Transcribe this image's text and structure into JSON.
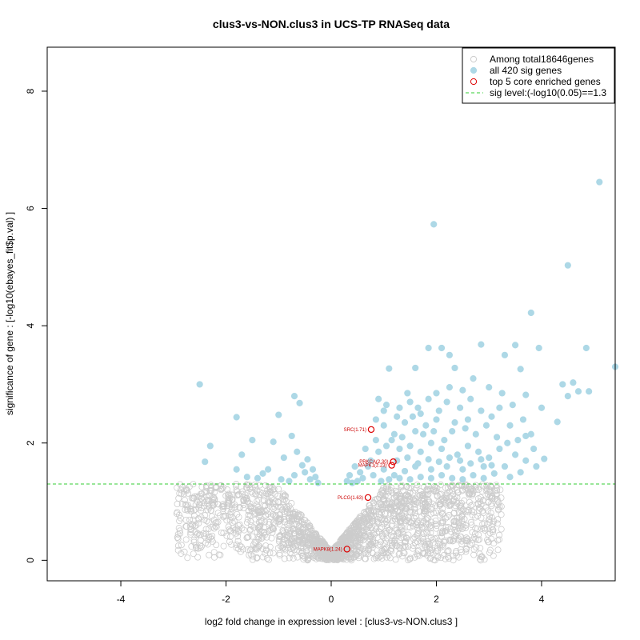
{
  "chart_data": {
    "type": "scatter",
    "title": "clus3-vs-NON.clus3 in UCS-TP RNASeq data",
    "xlabel": "log2 fold change in expression level : [clus3-vs-NON.clus3 ]",
    "ylabel": "significance of gene : [-log10(ebayes_fit$p.val) ]",
    "xlim": [
      -5.4,
      5.4
    ],
    "ylim": [
      -0.35,
      8.75
    ],
    "xticks": [
      -4,
      -2,
      0,
      2,
      4
    ],
    "yticks": [
      0,
      2,
      4,
      6,
      8
    ],
    "sig_level": 1.3,
    "colors": {
      "background_points": "#cccccc",
      "sig_points": "#add8e6",
      "top_points": "#dd0000",
      "sig_line": "#33cc33"
    },
    "legend": {
      "position": "top-right",
      "entries": [
        {
          "label": "Among total18646genes",
          "kind": "hollow-grey"
        },
        {
          "label": "all 420 sig genes",
          "kind": "filled-blue"
        },
        {
          "label": "top 5 core enriched genes",
          "kind": "hollow-red"
        },
        {
          "label": "sig level:(-log10(0.05)==1.3",
          "kind": "dashed-green"
        }
      ]
    },
    "top_genes": [
      {
        "label": "SRC(1.71)",
        "x": 0.76,
        "y": 2.23
      },
      {
        "label": "PRKCA(2.30)",
        "x": 1.18,
        "y": 1.68
      },
      {
        "label": "MAPK1(2.23)",
        "x": 1.15,
        "y": 1.62
      },
      {
        "label": "PLCG(1.63)",
        "x": 0.7,
        "y": 1.07
      },
      {
        "label": "MAPK8(1.24)",
        "x": 0.3,
        "y": 0.19
      }
    ],
    "sig_points": [
      [
        5.1,
        6.45
      ],
      [
        1.95,
        5.73
      ],
      [
        4.5,
        5.03
      ],
      [
        3.8,
        4.22
      ],
      [
        3.5,
        3.67
      ],
      [
        3.95,
        3.62
      ],
      [
        2.85,
        3.68
      ],
      [
        4.85,
        3.62
      ],
      [
        1.85,
        3.62
      ],
      [
        2.1,
        3.62
      ],
      [
        2.25,
        3.5
      ],
      [
        5.4,
        3.3
      ],
      [
        3.3,
        3.5
      ],
      [
        1.1,
        3.27
      ],
      [
        1.6,
        3.28
      ],
      [
        2.35,
        3.28
      ],
      [
        3.6,
        3.26
      ],
      [
        -2.5,
        3.0
      ],
      [
        4.6,
        3.03
      ],
      [
        4.4,
        3.0
      ],
      [
        4.7,
        2.88
      ],
      [
        4.9,
        2.88
      ],
      [
        4.5,
        2.8
      ],
      [
        3.7,
        2.82
      ],
      [
        -0.7,
        2.8
      ],
      [
        -0.6,
        2.68
      ],
      [
        -1.0,
        2.48
      ],
      [
        -1.8,
        2.44
      ],
      [
        4.3,
        2.36
      ],
      [
        3.8,
        2.15
      ],
      [
        3.7,
        2.12
      ],
      [
        -0.75,
        2.12
      ],
      [
        -1.5,
        2.05
      ],
      [
        -2.3,
        1.95
      ],
      [
        -1.1,
        2.02
      ],
      [
        -1.7,
        1.8
      ],
      [
        -0.9,
        1.75
      ],
      [
        -2.4,
        1.68
      ],
      [
        4.05,
        1.73
      ],
      [
        -1.8,
        1.55
      ],
      [
        -1.2,
        1.55
      ],
      [
        -0.5,
        1.5
      ],
      [
        -0.3,
        1.42
      ],
      [
        -1.4,
        1.4
      ],
      [
        -0.8,
        1.35
      ],
      [
        -0.55,
        1.62
      ],
      [
        -0.65,
        1.85
      ],
      [
        -0.45,
        1.72
      ],
      [
        -0.35,
        1.55
      ],
      [
        -1.6,
        1.42
      ],
      [
        -1.3,
        1.48
      ],
      [
        -0.95,
        1.38
      ],
      [
        -0.7,
        1.45
      ],
      [
        -0.4,
        1.38
      ],
      [
        -0.25,
        1.32
      ],
      [
        0.9,
        2.75
      ],
      [
        1.0,
        2.55
      ],
      [
        1.3,
        2.6
      ],
      [
        1.5,
        2.7
      ],
      [
        1.7,
        2.5
      ],
      [
        2.0,
        2.85
      ],
      [
        2.2,
        2.7
      ],
      [
        2.5,
        2.9
      ],
      [
        2.7,
        3.1
      ],
      [
        3.0,
        2.95
      ],
      [
        3.2,
        2.6
      ],
      [
        3.4,
        2.3
      ],
      [
        2.6,
        2.4
      ],
      [
        2.3,
        2.2
      ],
      [
        2.0,
        2.4
      ],
      [
        1.8,
        2.3
      ],
      [
        1.6,
        2.2
      ],
      [
        1.4,
        2.35
      ],
      [
        1.2,
        2.15
      ],
      [
        1.0,
        2.3
      ],
      [
        0.85,
        2.05
      ],
      [
        0.9,
        1.85
      ],
      [
        1.05,
        1.95
      ],
      [
        1.3,
        1.9
      ],
      [
        1.5,
        1.95
      ],
      [
        1.7,
        1.85
      ],
      [
        1.9,
        2.0
      ],
      [
        2.1,
        1.9
      ],
      [
        2.4,
        1.8
      ],
      [
        2.6,
        1.95
      ],
      [
        2.8,
        1.85
      ],
      [
        3.0,
        1.75
      ],
      [
        3.2,
        1.9
      ],
      [
        3.5,
        1.8
      ],
      [
        3.7,
        1.7
      ],
      [
        3.9,
        1.6
      ],
      [
        3.3,
        1.6
      ],
      [
        2.9,
        1.6
      ],
      [
        2.5,
        1.55
      ],
      [
        2.2,
        1.6
      ],
      [
        1.9,
        1.55
      ],
      [
        1.6,
        1.6
      ],
      [
        1.4,
        1.52
      ],
      [
        1.2,
        1.45
      ],
      [
        1.0,
        1.55
      ],
      [
        0.8,
        1.45
      ],
      [
        0.7,
        1.6
      ],
      [
        0.6,
        1.4
      ],
      [
        0.5,
        1.35
      ],
      [
        0.4,
        1.32
      ],
      [
        0.55,
        1.5
      ],
      [
        0.75,
        1.7
      ],
      [
        0.95,
        1.35
      ],
      [
        1.1,
        1.38
      ],
      [
        1.3,
        1.4
      ],
      [
        1.5,
        1.38
      ],
      [
        1.7,
        1.42
      ],
      [
        1.9,
        1.4
      ],
      [
        2.1,
        1.45
      ],
      [
        2.3,
        1.4
      ],
      [
        2.5,
        1.38
      ],
      [
        2.7,
        1.45
      ],
      [
        2.9,
        1.4
      ],
      [
        3.1,
        1.48
      ],
      [
        3.4,
        1.42
      ],
      [
        3.6,
        1.5
      ],
      [
        1.25,
        1.7
      ],
      [
        1.45,
        1.75
      ],
      [
        1.65,
        1.65
      ],
      [
        1.85,
        1.72
      ],
      [
        2.05,
        1.68
      ],
      [
        2.25,
        1.75
      ],
      [
        2.45,
        1.7
      ],
      [
        2.65,
        1.65
      ],
      [
        2.85,
        1.72
      ],
      [
        3.05,
        1.62
      ],
      [
        1.15,
        2.05
      ],
      [
        1.35,
        2.1
      ],
      [
        1.55,
        2.45
      ],
      [
        1.75,
        2.15
      ],
      [
        1.95,
        2.2
      ],
      [
        2.15,
        2.05
      ],
      [
        2.35,
        2.35
      ],
      [
        2.55,
        2.25
      ],
      [
        2.75,
        2.15
      ],
      [
        2.95,
        2.3
      ],
      [
        3.15,
        2.1
      ],
      [
        3.35,
        2.0
      ],
      [
        3.55,
        2.05
      ],
      [
        0.65,
        1.9
      ],
      [
        0.85,
        2.4
      ],
      [
        1.05,
        2.65
      ],
      [
        1.25,
        2.45
      ],
      [
        1.45,
        2.85
      ],
      [
        1.65,
        2.6
      ],
      [
        1.85,
        2.75
      ],
      [
        2.05,
        2.55
      ],
      [
        2.25,
        2.95
      ],
      [
        2.45,
        2.6
      ],
      [
        2.65,
        2.75
      ],
      [
        2.85,
        2.55
      ],
      [
        3.05,
        2.45
      ],
      [
        3.25,
        2.85
      ],
      [
        3.45,
        2.65
      ],
      [
        3.65,
        2.4
      ],
      [
        0.45,
        1.6
      ],
      [
        0.35,
        1.45
      ],
      [
        0.3,
        1.35
      ],
      [
        3.85,
        1.9
      ],
      [
        4.0,
        2.6
      ]
    ]
  }
}
